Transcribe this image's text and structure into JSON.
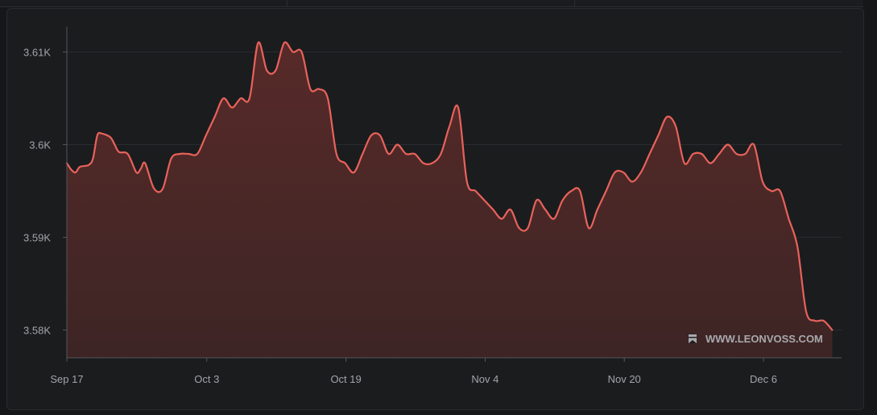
{
  "chart_data": {
    "type": "area",
    "xlabel": "",
    "ylabel": "",
    "grid": true,
    "ylim": [
      3577,
      3613
    ],
    "y_ticks": [
      3580,
      3590,
      3600,
      3610
    ],
    "y_tick_labels": [
      "3.58K",
      "3.59K",
      "3.6K",
      "3.61K"
    ],
    "x_tick_labels": [
      "Sep 17",
      "Oct 3",
      "Oct 19",
      "Nov 4",
      "Nov 20",
      "Dec 6"
    ],
    "x_tick_days": [
      0,
      16,
      32,
      48,
      64,
      80
    ],
    "series": [
      {
        "points": [
          [
            0,
            3598
          ],
          [
            0.5,
            3597.3
          ],
          [
            1,
            3597
          ],
          [
            1.5,
            3597.6
          ],
          [
            2.5,
            3597.8
          ],
          [
            3,
            3598.5
          ],
          [
            3.5,
            3601
          ],
          [
            4,
            3601.2
          ],
          [
            5,
            3600.8
          ],
          [
            5.5,
            3600
          ],
          [
            6,
            3599.2
          ],
          [
            7,
            3599
          ],
          [
            8,
            3597
          ],
          [
            8.5,
            3597.4
          ],
          [
            9,
            3598
          ],
          [
            10,
            3595.3
          ],
          [
            11,
            3595.2
          ],
          [
            12,
            3598.5
          ],
          [
            13,
            3599
          ],
          [
            14,
            3599
          ],
          [
            15,
            3599
          ],
          [
            16,
            3601
          ],
          [
            17,
            3603
          ],
          [
            18,
            3605
          ],
          [
            19,
            3604
          ],
          [
            20,
            3605
          ],
          [
            21,
            3605
          ],
          [
            22,
            3611
          ],
          [
            23,
            3608
          ],
          [
            24,
            3608
          ],
          [
            25,
            3611
          ],
          [
            26,
            3610
          ],
          [
            27,
            3610
          ],
          [
            28,
            3606
          ],
          [
            29,
            3606
          ],
          [
            30,
            3605
          ],
          [
            31,
            3599
          ],
          [
            32,
            3598
          ],
          [
            33,
            3597
          ],
          [
            34,
            3599
          ],
          [
            35,
            3601
          ],
          [
            36,
            3601
          ],
          [
            37,
            3599
          ],
          [
            38,
            3600
          ],
          [
            39,
            3599
          ],
          [
            40,
            3599
          ],
          [
            41,
            3598
          ],
          [
            42,
            3598
          ],
          [
            43,
            3599
          ],
          [
            44,
            3602
          ],
          [
            45,
            3604
          ],
          [
            46,
            3596
          ],
          [
            47,
            3595
          ],
          [
            48,
            3594
          ],
          [
            49,
            3593
          ],
          [
            50,
            3592
          ],
          [
            51,
            3593
          ],
          [
            52,
            3591
          ],
          [
            53,
            3591
          ],
          [
            54,
            3594
          ],
          [
            55,
            3593
          ],
          [
            56,
            3592
          ],
          [
            57,
            3594
          ],
          [
            58,
            3595
          ],
          [
            59,
            3595
          ],
          [
            60,
            3591
          ],
          [
            61,
            3593
          ],
          [
            62,
            3595
          ],
          [
            63,
            3597
          ],
          [
            64,
            3597
          ],
          [
            65,
            3596
          ],
          [
            66,
            3597
          ],
          [
            67,
            3599
          ],
          [
            68,
            3601
          ],
          [
            69,
            3603
          ],
          [
            70,
            3602
          ],
          [
            71,
            3598
          ],
          [
            72,
            3599
          ],
          [
            73,
            3599
          ],
          [
            74,
            3598
          ],
          [
            75,
            3599
          ],
          [
            76,
            3600
          ],
          [
            77,
            3599
          ],
          [
            78,
            3599
          ],
          [
            79,
            3600
          ],
          [
            80,
            3596
          ],
          [
            81,
            3595
          ],
          [
            82,
            3595
          ],
          [
            83,
            3592
          ],
          [
            84,
            3589
          ],
          [
            85,
            3582
          ],
          [
            86,
            3581
          ],
          [
            87,
            3581
          ],
          [
            88,
            3580
          ]
        ]
      }
    ],
    "colors": {
      "line": "#e8625b",
      "fill_top": "#5a2b29",
      "fill_bottom": "#3f2525",
      "grid": "#2a2b2f",
      "axis": "#55565a"
    }
  },
  "watermark": {
    "text": "WWW.LEONVOSS.COM",
    "icon": "bookmark-icon"
  }
}
